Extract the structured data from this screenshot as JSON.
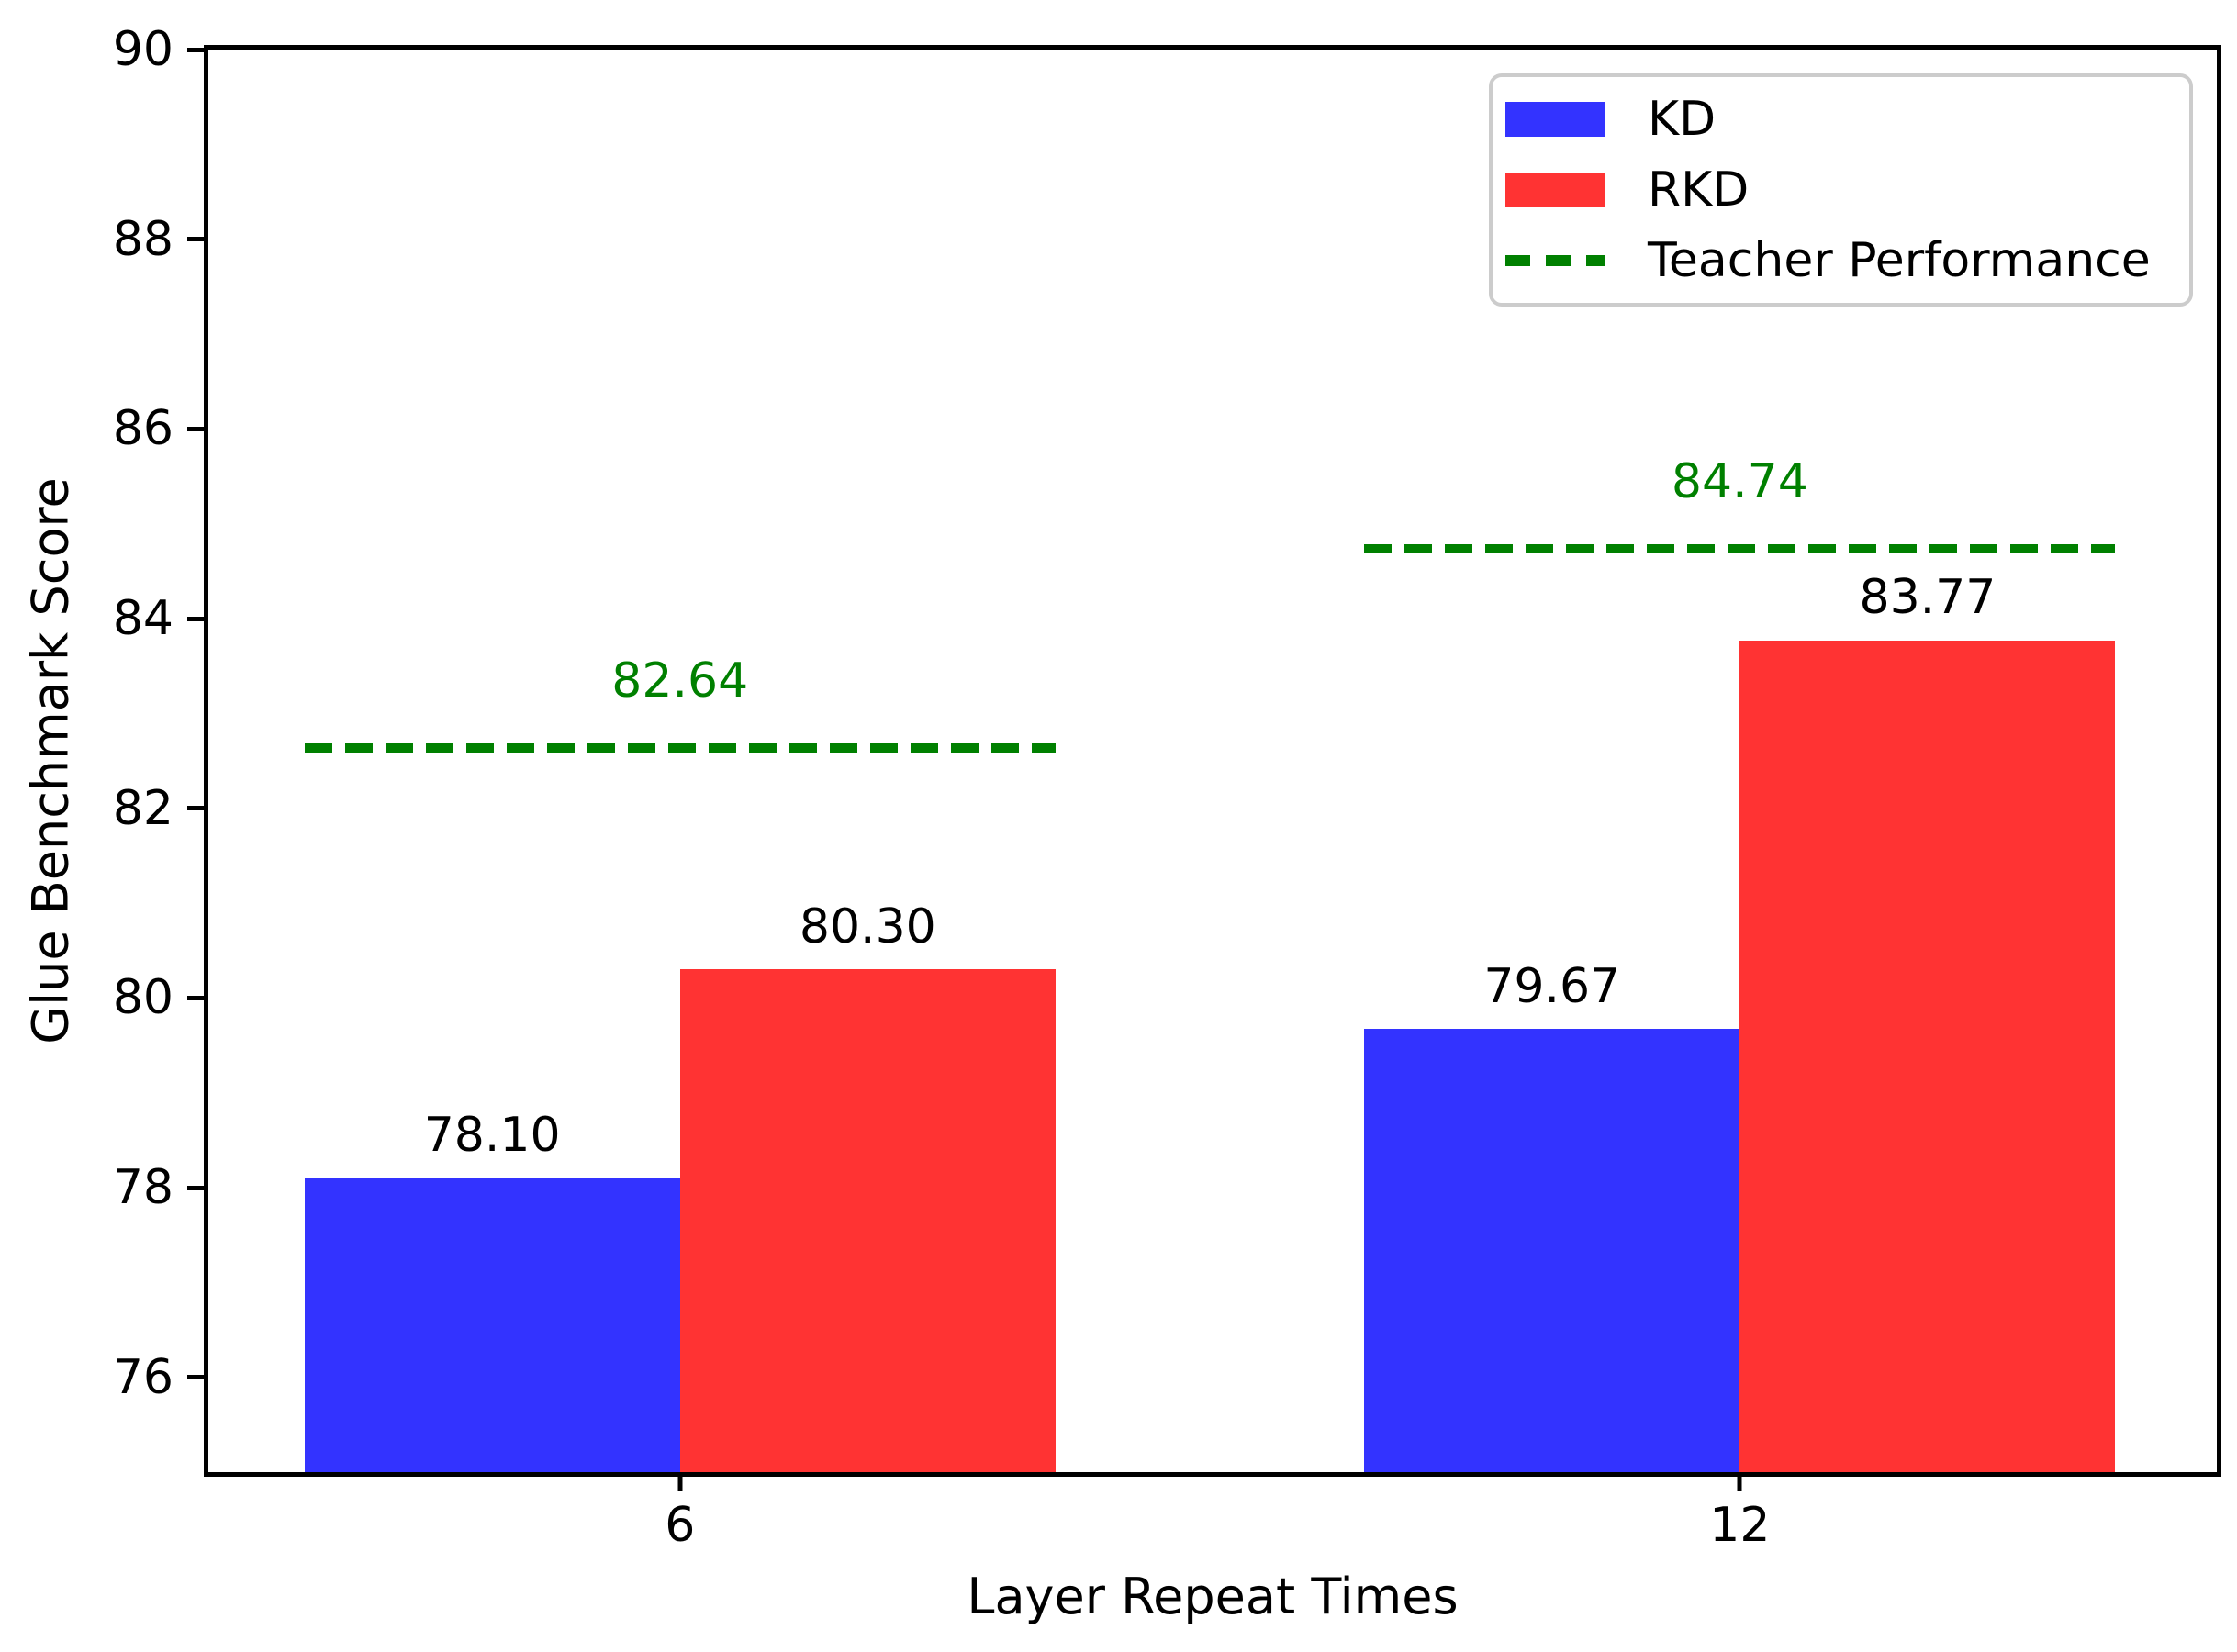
{
  "figure": {
    "background": "#ffffff"
  },
  "chart_data": {
    "type": "bar",
    "title": "",
    "xlabel": "Layer Repeat Times",
    "ylabel": "Glue Benchmark Score",
    "categories": [
      "6",
      "12"
    ],
    "series": [
      {
        "name": "KD",
        "color": "#3333ff",
        "values": [
          78.1,
          79.67
        ]
      },
      {
        "name": "RKD",
        "color": "#ff3333",
        "values": [
          80.3,
          83.77
        ]
      }
    ],
    "teacher_line": {
      "label": "Teacher Performance",
      "color": "#008000",
      "style": "dashed",
      "values": [
        82.64,
        84.74
      ]
    },
    "value_label_format": "0.00",
    "ylim": [
      75,
      90
    ],
    "yticks": [
      76,
      78,
      80,
      82,
      84,
      86,
      88,
      90
    ],
    "grid": false,
    "legend": {
      "position": "upper-right",
      "entries": [
        "KD",
        "RKD",
        "Teacher Performance"
      ]
    }
  }
}
